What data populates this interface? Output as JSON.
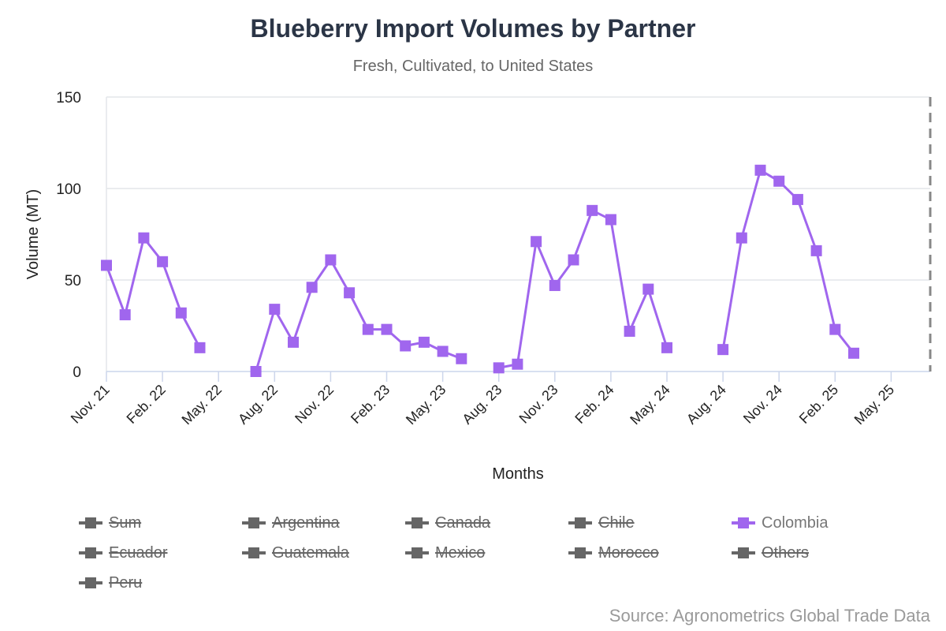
{
  "chart_data": {
    "type": "line",
    "title": "Blueberry Import Volumes by Partner",
    "subtitle": "Fresh, Cultivated, to United States",
    "xlabel": "Months",
    "ylabel": "Volume (MT)",
    "ylim": [
      0,
      150
    ],
    "yticks": [
      0,
      50,
      100,
      150
    ],
    "xticks": [
      "Nov. 21",
      "Feb. 22",
      "May. 22",
      "Aug. 22",
      "Nov. 22",
      "Feb. 23",
      "May. 23",
      "Aug. 23",
      "Nov. 23",
      "Feb. 24",
      "May. 24",
      "Aug. 24",
      "Nov. 24",
      "Feb. 25",
      "May. 25"
    ],
    "x_start": "Nov. 21",
    "grid": "horizontal",
    "series": [
      {
        "name": "Colombia",
        "color": "#a066ee",
        "marker": "square",
        "points": [
          [
            "Nov. 21",
            58
          ],
          [
            "Dec. 21",
            31
          ],
          [
            "Jan. 22",
            73
          ],
          [
            "Feb. 22",
            60
          ],
          [
            "Mar. 22",
            32
          ],
          [
            "Apr. 22",
            13
          ],
          [
            "May. 22",
            null
          ],
          [
            "Jun. 22",
            null
          ],
          [
            "Jul. 22",
            0
          ],
          [
            "Aug. 22",
            34
          ],
          [
            "Sep. 22",
            16
          ],
          [
            "Oct. 22",
            46
          ],
          [
            "Nov. 22",
            61
          ],
          [
            "Dec. 22",
            43
          ],
          [
            "Jan. 23",
            23
          ],
          [
            "Feb. 23",
            23
          ],
          [
            "Mar. 23",
            14
          ],
          [
            "Apr. 23",
            16
          ],
          [
            "May. 23",
            11
          ],
          [
            "Jun. 23",
            7
          ],
          [
            "Jul. 23",
            null
          ],
          [
            "Aug. 23",
            2
          ],
          [
            "Sep. 23",
            4
          ],
          [
            "Oct. 23",
            71
          ],
          [
            "Nov. 23",
            47
          ],
          [
            "Dec. 23",
            61
          ],
          [
            "Jan. 24",
            88
          ],
          [
            "Feb. 24",
            83
          ],
          [
            "Mar. 24",
            22
          ],
          [
            "Apr. 24",
            45
          ],
          [
            "May. 24",
            13
          ],
          [
            "Jun. 24",
            null
          ],
          [
            "Jul. 24",
            null
          ],
          [
            "Aug. 24",
            12
          ],
          [
            "Sep. 24",
            73
          ],
          [
            "Oct. 24",
            110
          ],
          [
            "Nov. 24",
            104
          ],
          [
            "Dec. 24",
            94
          ],
          [
            "Jan. 25",
            66
          ],
          [
            "Feb. 25",
            23
          ],
          [
            "Mar. 25",
            10
          ]
        ]
      }
    ],
    "legend": [
      {
        "name": "Sum",
        "visible": false
      },
      {
        "name": "Argentina",
        "visible": false
      },
      {
        "name": "Canada",
        "visible": false
      },
      {
        "name": "Chile",
        "visible": false
      },
      {
        "name": "Colombia",
        "visible": true
      },
      {
        "name": "Ecuador",
        "visible": false
      },
      {
        "name": "Guatemala",
        "visible": false
      },
      {
        "name": "Mexico",
        "visible": false
      },
      {
        "name": "Morocco",
        "visible": false
      },
      {
        "name": "Others",
        "visible": false
      },
      {
        "name": "Peru",
        "visible": false
      }
    ]
  },
  "source": "Source: Agronometrics Global Trade Data",
  "colors": {
    "series": "#a066ee",
    "legend_off": "#666666",
    "grid": "#e3e6ea",
    "axis": "#ccd6eb",
    "title": "#2b3546"
  }
}
